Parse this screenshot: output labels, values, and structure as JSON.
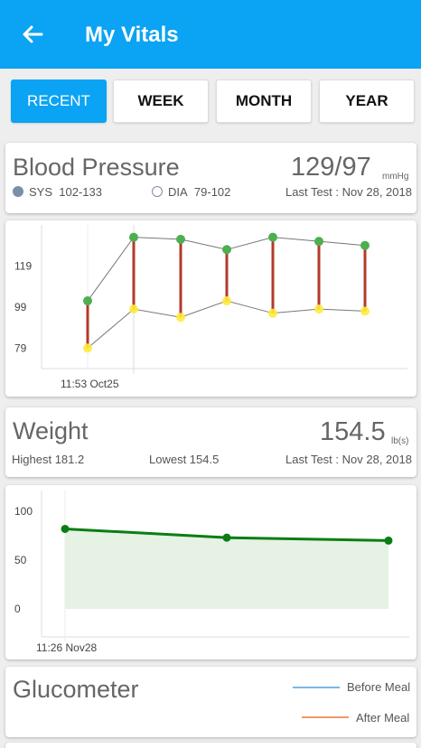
{
  "appbar": {
    "title": "My Vitals",
    "back_icon": "arrow-left-icon"
  },
  "tabs": [
    {
      "label": "RECENT",
      "active": true
    },
    {
      "label": "WEEK",
      "active": false
    },
    {
      "label": "MONTH",
      "active": false
    },
    {
      "label": "YEAR",
      "active": false
    }
  ],
  "blood_pressure": {
    "title": "Blood Pressure",
    "value": "129/97",
    "unit": "mmHg",
    "sys_label": "SYS",
    "sys_range": "102-133",
    "dia_label": "DIA",
    "dia_range": "79-102",
    "last_test": "Last Test : Nov 28, 2018",
    "sys_color": "#7a8fa6",
    "dia_color": "#ffffff"
  },
  "weight": {
    "title": "Weight",
    "value": "154.5",
    "unit": "lb(s)",
    "highest": "Highest 181.2",
    "lowest": "Lowest 154.5",
    "last_test": "Last Test : Nov 28, 2018"
  },
  "glucometer": {
    "title": "Glucometer",
    "legend": [
      {
        "name": "Before Meal",
        "color": "#4aa3df"
      },
      {
        "name": "After Meal",
        "color": "#e8793a"
      }
    ]
  },
  "chart_data": [
    {
      "type": "line",
      "chart": "blood-pressure",
      "yticks": [
        "119",
        "99",
        "79"
      ],
      "xticks": [
        "11:53 Oct25"
      ],
      "ylim": [
        69,
        139
      ],
      "series": [
        {
          "name": "SYS",
          "values": [
            102,
            133,
            132,
            127,
            133,
            131,
            129
          ],
          "color": "#4caf50"
        },
        {
          "name": "DIA",
          "values": [
            79,
            98,
            94,
            102,
            96,
            98,
            97
          ],
          "color": "#ffeb3b"
        }
      ],
      "connector_color": "#b33a2b"
    },
    {
      "type": "area",
      "chart": "weight",
      "yticks": [
        "100",
        "50",
        "0"
      ],
      "xticks": [
        "11:26 Nov28"
      ],
      "ylim": [
        0,
        100
      ],
      "values": [
        82,
        73,
        70
      ],
      "color": "#0b7d14",
      "fill": "#e6f2e4"
    }
  ]
}
